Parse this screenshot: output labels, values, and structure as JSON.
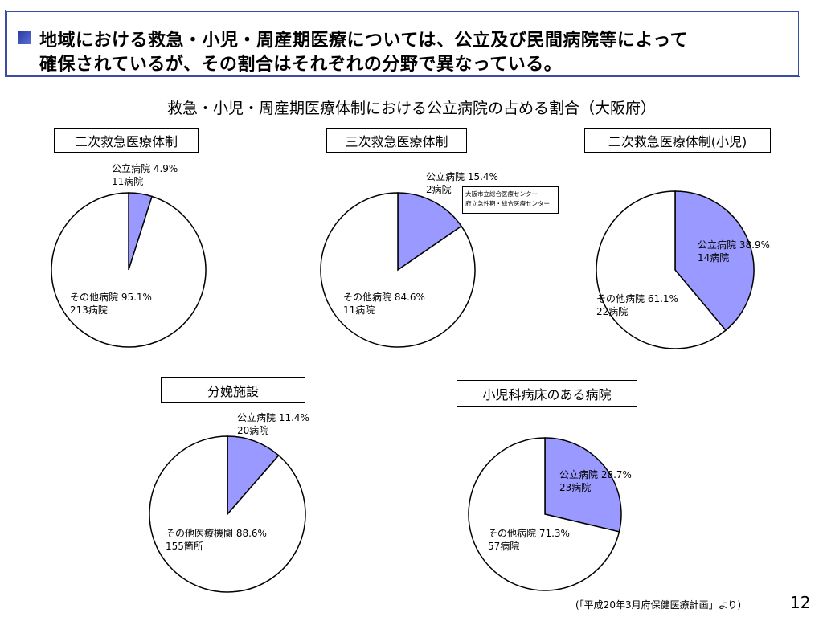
{
  "header": {
    "line1": "地域における救急・小児・周産期医療については、公立及び民間病院等によって",
    "line2": "確保されているが、その割合はそれぞれの分野で異なっている。"
  },
  "main_title": "救急・小児・周産期医療体制における公立病院の占める割合（大阪府）",
  "colors": {
    "public": "#9999ff",
    "other": "#ffffff",
    "header_border": "#3a4da6",
    "marker": "#2c3da0"
  },
  "chart_data": [
    {
      "type": "pie",
      "title": "二次救急医療体制",
      "slices": [
        {
          "name": "公立病院",
          "percent_label": "4.9%",
          "count_label": "11病院",
          "value": 4.9,
          "color": "#9999ff"
        },
        {
          "name": "その他病院",
          "percent_label": "95.1%",
          "count_label": "213病院",
          "value": 95.1,
          "color": "#ffffff"
        }
      ]
    },
    {
      "type": "pie",
      "title": "三次救急医療体制",
      "note": [
        "大阪市立総合医療センター",
        "府立急性期・総合医療センター"
      ],
      "slices": [
        {
          "name": "公立病院",
          "percent_label": "15.4%",
          "count_label": "2病院",
          "value": 15.4,
          "color": "#9999ff"
        },
        {
          "name": "その他病院",
          "percent_label": "84.6%",
          "count_label": "11病院",
          "value": 84.6,
          "color": "#ffffff"
        }
      ]
    },
    {
      "type": "pie",
      "title": "二次救急医療体制(小児)",
      "slices": [
        {
          "name": "公立病院",
          "percent_label": "38.9%",
          "count_label": "14病院",
          "value": 38.9,
          "color": "#9999ff"
        },
        {
          "name": "その他病院",
          "percent_label": "61.1%",
          "count_label": "22病院",
          "value": 61.1,
          "color": "#ffffff"
        }
      ]
    },
    {
      "type": "pie",
      "title": "分娩施設",
      "slices": [
        {
          "name": "公立病院",
          "percent_label": "11.4%",
          "count_label": "20病院",
          "value": 11.4,
          "color": "#9999ff"
        },
        {
          "name": "その他医療機関",
          "percent_label": "88.6%",
          "count_label": "155箇所",
          "value": 88.6,
          "color": "#ffffff"
        }
      ]
    },
    {
      "type": "pie",
      "title": "小児科病床のある病院",
      "slices": [
        {
          "name": "公立病院",
          "percent_label": "28.7%",
          "count_label": "23病院",
          "value": 28.7,
          "color": "#9999ff"
        },
        {
          "name": "その他病院",
          "percent_label": "71.3%",
          "count_label": "57病院",
          "value": 71.3,
          "color": "#ffffff"
        }
      ]
    }
  ],
  "source_note": "(「平成20年3月府保健医療計画」より)",
  "page_number": "12"
}
